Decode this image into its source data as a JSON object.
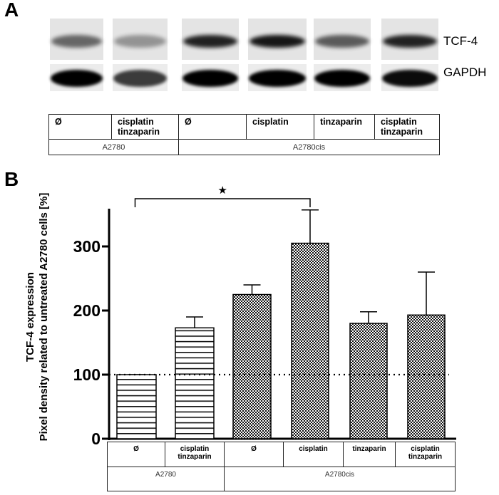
{
  "panel_a": {
    "label": "A",
    "blot_labels": [
      "TCF-4",
      "GAPDH"
    ],
    "tcf4_intensity": [
      0.55,
      0.35,
      0.85,
      0.9,
      0.6,
      0.85
    ],
    "gapdh_intensity": [
      1.0,
      0.75,
      1.0,
      1.0,
      1.0,
      0.95
    ],
    "treatments": [
      "Ø",
      "cisplatin\ntinzaparin",
      "Ø",
      "cisplatin",
      "tinzaparin",
      "cisplatin\ntinzaparin"
    ],
    "cell_lines": [
      "A2780",
      "A2780cis"
    ]
  },
  "chart_data": {
    "type": "bar",
    "panel_label": "B",
    "title": "",
    "categories": [
      "Ø",
      "cisplatin tinzaparin",
      "Ø",
      "cisplatin",
      "tinzaparin",
      "cisplatin tinzaparin"
    ],
    "category_labels": [
      "Ø",
      "cisplatin\ntinzaparin",
      "Ø",
      "cisplatin",
      "tinzaparin",
      "cisplatin\ntinzaparin"
    ],
    "groups": [
      "A2780",
      "A2780cis"
    ],
    "values": [
      100,
      173,
      225,
      305,
      180,
      193
    ],
    "error_upper": [
      100,
      190,
      240,
      357,
      198,
      260
    ],
    "patterns": [
      "stripes",
      "stripes",
      "checker",
      "checker",
      "checker",
      "checker"
    ],
    "ylabel_lines": [
      "TCF-4 expression",
      "Pixel density related to untreated A2780 cells [%]"
    ],
    "yticks": [
      0,
      100,
      200,
      300
    ],
    "ylim": [
      0,
      360
    ],
    "reference_line": 100,
    "significance": {
      "from": 0,
      "to": 3,
      "symbol": "★"
    }
  }
}
